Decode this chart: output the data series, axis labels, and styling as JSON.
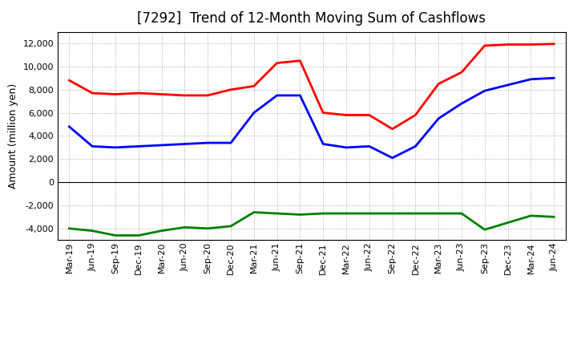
{
  "title": "[7292]  Trend of 12-Month Moving Sum of Cashflows",
  "ylabel": "Amount (million yen)",
  "ylim": [
    -5000,
    13000
  ],
  "yticks": [
    -4000,
    -2000,
    0,
    2000,
    4000,
    6000,
    8000,
    10000,
    12000
  ],
  "x_labels": [
    "Mar-19",
    "Jun-19",
    "Sep-19",
    "Dec-19",
    "Mar-20",
    "Jun-20",
    "Sep-20",
    "Dec-20",
    "Mar-21",
    "Jun-21",
    "Sep-21",
    "Dec-21",
    "Mar-22",
    "Jun-22",
    "Sep-22",
    "Dec-22",
    "Mar-23",
    "Jun-23",
    "Sep-23",
    "Dec-23",
    "Mar-24",
    "Jun-24"
  ],
  "operating": [
    8800,
    7700,
    7600,
    7700,
    7600,
    7500,
    7500,
    8000,
    8300,
    10300,
    10500,
    6000,
    5800,
    5800,
    4600,
    5800,
    8500,
    9500,
    11800,
    11900,
    11900,
    11950
  ],
  "investing": [
    -4000,
    -4200,
    -4600,
    -4600,
    -4200,
    -3900,
    -4000,
    -3800,
    -2600,
    -2700,
    -2800,
    -2700,
    -2700,
    -2700,
    -2700,
    -2700,
    -2700,
    -2700,
    -4100,
    -3500,
    -2900,
    -3000
  ],
  "free": [
    4800,
    3100,
    3000,
    3100,
    3200,
    3300,
    3400,
    3400,
    6000,
    7500,
    7500,
    3300,
    3000,
    3100,
    2100,
    3100,
    5500,
    6800,
    7900,
    8400,
    8900,
    9000
  ],
  "operating_color": "#FF0000",
  "investing_color": "#008000",
  "free_color": "#0000FF",
  "line_width": 2.0,
  "bg_color": "#FFFFFF",
  "grid_color": "#999999",
  "title_fontsize": 12,
  "ylabel_fontsize": 9,
  "tick_fontsize": 8,
  "legend_fontsize": 9
}
